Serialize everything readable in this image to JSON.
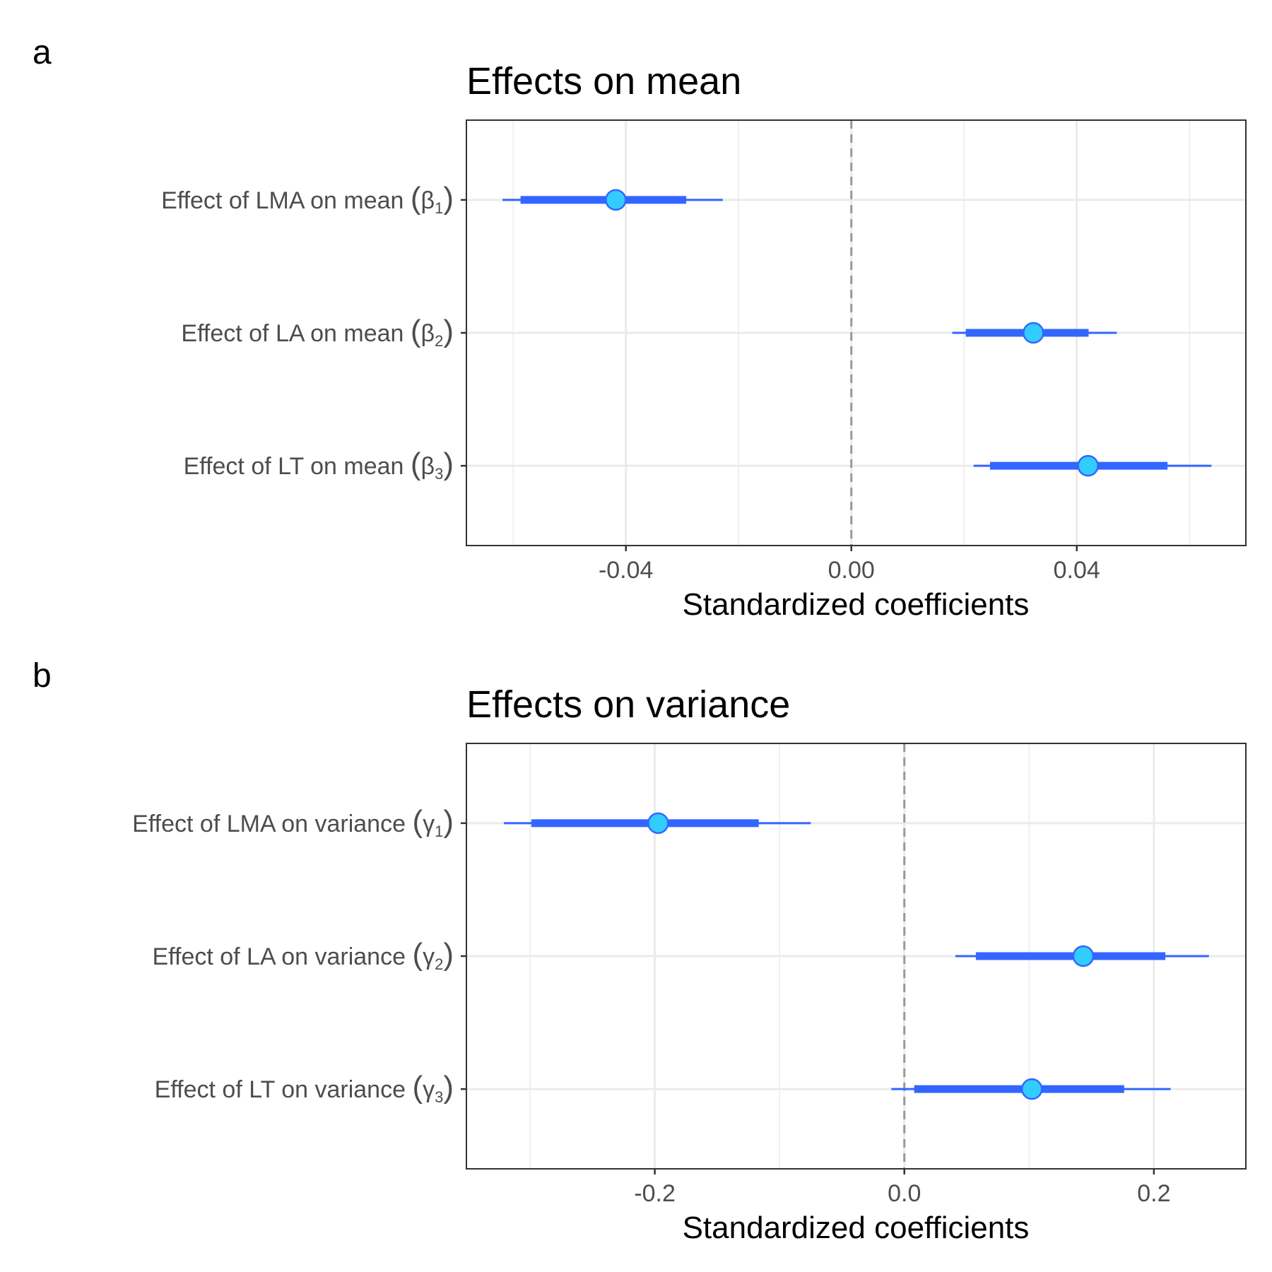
{
  "chart_data": [
    {
      "type": "pointrange",
      "panel_tag": "a",
      "title": "Effects on mean",
      "xlabel": "Standardized coefficients",
      "xlim": [
        -0.0683,
        0.07
      ],
      "x_ticks": [
        -0.04,
        0.0,
        0.04
      ],
      "x_tick_labels": [
        "-0.04",
        "0.00",
        "0.04"
      ],
      "x_minor_ticks": [
        -0.06,
        -0.02,
        0.02,
        0.06
      ],
      "reference_line": 0,
      "grid": true,
      "rows": [
        {
          "label": "Effect of LMA on mean",
          "symbol": "β",
          "subscript": "1",
          "estimate": -0.0418,
          "inner": [
            -0.0587,
            -0.0293
          ],
          "outer": [
            -0.0619,
            -0.0228
          ]
        },
        {
          "label": "Effect of LA on mean",
          "symbol": "β",
          "subscript": "2",
          "estimate": 0.0323,
          "inner": [
            0.0203,
            0.0421
          ],
          "outer": [
            0.0179,
            0.0471
          ]
        },
        {
          "label": "Effect of LT on mean",
          "symbol": "β",
          "subscript": "3",
          "estimate": 0.042,
          "inner": [
            0.0246,
            0.0561
          ],
          "outer": [
            0.0217,
            0.0639
          ]
        }
      ]
    },
    {
      "type": "pointrange",
      "panel_tag": "b",
      "title": "Effects on variance",
      "xlabel": "Standardized coefficients",
      "xlim": [
        -0.351,
        0.2737
      ],
      "x_ticks": [
        -0.2,
        0.0,
        0.2
      ],
      "x_tick_labels": [
        "-0.2",
        "0.0",
        "0.2"
      ],
      "x_minor_ticks": [
        -0.3,
        -0.1,
        0.1
      ],
      "reference_line": 0,
      "grid": true,
      "rows": [
        {
          "label": "Effect of LMA on variance",
          "symbol": "γ",
          "subscript": "1",
          "estimate": -0.1973,
          "inner": [
            -0.299,
            -0.1167
          ],
          "outer": [
            -0.3209,
            -0.075
          ]
        },
        {
          "label": "Effect of LA on variance",
          "symbol": "γ",
          "subscript": "2",
          "estimate": 0.1434,
          "inner": [
            0.0573,
            0.2092
          ],
          "outer": [
            0.0409,
            0.2441
          ]
        },
        {
          "label": "Effect of LT on variance",
          "symbol": "γ",
          "subscript": "3",
          "estimate": 0.1022,
          "inner": [
            0.0079,
            0.1762
          ],
          "outer": [
            -0.0104,
            0.2134
          ]
        }
      ]
    }
  ],
  "colors": {
    "interval": "#3366ff",
    "point_fill": "#33ccff",
    "point_stroke": "#3366ff",
    "grid": "#ebebeb",
    "reference_line": "#999999",
    "panel_border": "#333333",
    "tick_text": "#4d4d4d"
  }
}
